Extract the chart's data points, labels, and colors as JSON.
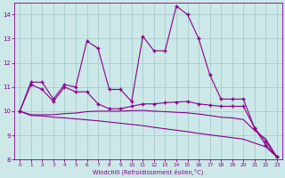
{
  "xlabel": "Windchill (Refroidissement éolien,°C)",
  "xlim": [
    -0.5,
    23.5
  ],
  "ylim": [
    8,
    14.5
  ],
  "yticks": [
    8,
    9,
    10,
    11,
    12,
    13,
    14
  ],
  "xticks": [
    0,
    1,
    2,
    3,
    4,
    5,
    6,
    7,
    8,
    9,
    10,
    11,
    12,
    13,
    14,
    15,
    16,
    17,
    18,
    19,
    20,
    21,
    22,
    23
  ],
  "bg_color": "#cce8e8",
  "grid_color": "#aacccc",
  "line_color": "#880088",
  "line1_y": [
    10.0,
    11.2,
    11.2,
    10.5,
    11.1,
    11.0,
    12.9,
    12.6,
    10.9,
    10.9,
    10.4,
    13.1,
    12.5,
    12.5,
    14.35,
    14.0,
    13.0,
    11.5,
    10.5,
    10.5,
    10.5,
    9.3,
    8.6,
    8.1
  ],
  "line2_y": [
    10.0,
    11.1,
    10.9,
    10.4,
    11.0,
    10.8,
    10.8,
    10.3,
    10.1,
    10.1,
    10.2,
    10.3,
    10.3,
    10.35,
    10.38,
    10.4,
    10.3,
    10.25,
    10.2,
    10.2,
    10.2,
    9.3,
    8.75,
    8.1
  ],
  "line3_y": [
    10.0,
    9.85,
    9.85,
    9.85,
    9.9,
    9.92,
    9.98,
    10.0,
    10.0,
    10.0,
    10.02,
    10.03,
    10.0,
    9.98,
    9.95,
    9.93,
    9.88,
    9.82,
    9.75,
    9.72,
    9.65,
    9.2,
    8.85,
    8.1
  ],
  "line4_y": [
    10.0,
    9.82,
    9.8,
    9.75,
    9.72,
    9.68,
    9.64,
    9.6,
    9.55,
    9.5,
    9.45,
    9.4,
    9.33,
    9.27,
    9.21,
    9.15,
    9.08,
    9.02,
    8.96,
    8.9,
    8.84,
    8.68,
    8.52,
    8.1
  ]
}
